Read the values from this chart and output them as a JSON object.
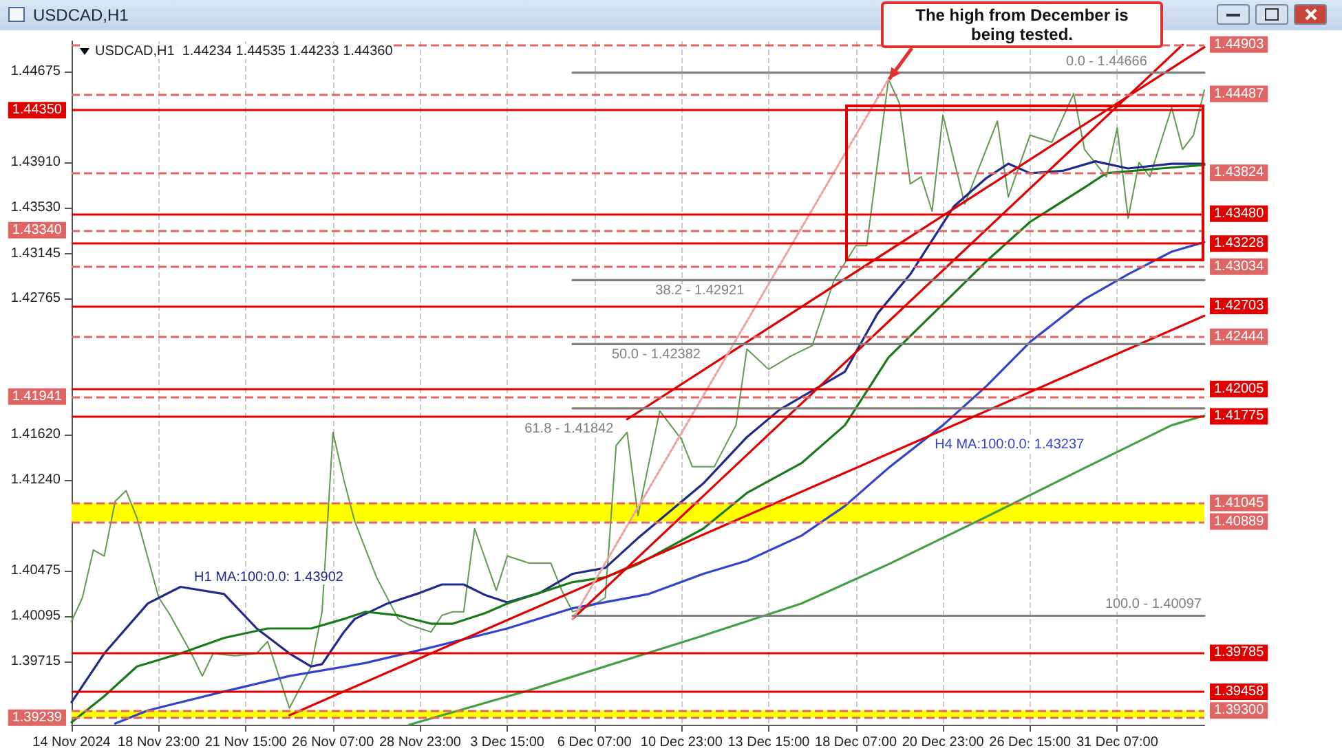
{
  "chart_data": {
    "type": "line",
    "title": "USDCAD,H1",
    "subtitle": "USDCAD,H1  1.44234 1.44535 1.44233 1.44360",
    "annotations": [
      "The high from December is being tested."
    ],
    "categories": [
      "14 Nov 2024",
      null,
      null,
      null,
      null,
      null,
      null,
      null,
      "18 Nov 23:00",
      null,
      null,
      null,
      null,
      null,
      null,
      null,
      "21 Nov 15:00",
      null,
      null,
      null,
      null,
      null,
      null,
      null,
      "26 Nov 07:00",
      null,
      null,
      null,
      null,
      null,
      null,
      null,
      "28 Nov 23:00",
      null,
      null,
      null,
      null,
      null,
      null,
      null,
      "3 Dec 15:00",
      null,
      null,
      null,
      null,
      null,
      null,
      null,
      "6 Dec 07:00",
      null,
      null,
      null,
      null,
      null,
      null,
      null,
      "10 Dec 23:00",
      null,
      null,
      null,
      null,
      null,
      null,
      null,
      "13 Dec 15:00",
      null,
      null,
      null,
      null,
      null,
      null,
      null,
      "18 Dec 07:00",
      null,
      null,
      null,
      null,
      null,
      null,
      null,
      "20 Dec 23:00",
      null,
      null,
      null,
      null,
      null,
      null,
      null,
      "26 Dec 15:00",
      null,
      null,
      null,
      null,
      null,
      null,
      null,
      "31 Dec 07:00",
      null,
      null,
      null,
      null,
      null,
      null,
      null,
      null
    ],
    "ylim": [
      1.3918,
      1.4493
    ],
    "yticks": [
      {
        "value": 1.44675,
        "label": "1.44675"
      },
      {
        "value": 1.4391,
        "label": "1.43910"
      },
      {
        "value": 1.4353,
        "label": "1.43530"
      },
      {
        "value": 1.43145,
        "label": "1.43145"
      },
      {
        "value": 1.42765,
        "label": "1.42765"
      },
      {
        "value": 1.4162,
        "label": "1.41620"
      },
      {
        "value": 1.4124,
        "label": "1.41240"
      },
      {
        "value": 1.40475,
        "label": "1.40475"
      },
      {
        "value": 1.40095,
        "label": "1.40095"
      },
      {
        "value": 1.39715,
        "label": "1.39715"
      }
    ],
    "grid": "x",
    "series": [
      {
        "color": "#5f9a50",
        "values": [
          1.4005,
          1.4025,
          1.4065,
          1.406,
          1.4106,
          1.4115,
          1.4092,
          null,
          1.4025,
          1.4011,
          null,
          1.3978,
          1.3959,
          1.3978,
          null,
          1.3976,
          null,
          1.3978,
          1.3988,
          null,
          1.3932,
          null,
          1.3967,
          1.4013,
          1.4164,
          1.4124,
          1.4089,
          null,
          1.4042,
          null,
          1.4007,
          1.4002,
          null,
          1.3996,
          1.401,
          1.4013,
          1.4013,
          1.4083,
          null,
          1.4031,
          1.406,
          null,
          1.4054,
          null,
          1.4054,
          1.4031,
          1.4013,
          null,
          1.4019,
          1.4025,
          1.4153,
          1.4164,
          1.4094,
          null,
          1.4182,
          null,
          1.4158,
          1.4135,
          null,
          1.4135,
          null,
          1.417,
          1.4234,
          null,
          1.4217,
          null,
          1.4228,
          null,
          1.4237,
          null,
          1.4292,
          null,
          1.4321,
          1.4321,
          null,
          1.4461,
          1.4441,
          1.4373,
          1.4379,
          1.435,
          1.4431,
          null,
          1.4356,
          null,
          null,
          1.4426,
          1.4362,
          null,
          1.4414,
          null,
          1.4408,
          null,
          1.4449,
          1.4402,
          null,
          1.4379,
          1.442,
          1.4344,
          1.4391,
          1.4379,
          null,
          1.4437,
          1.4402,
          1.4414,
          1.4452
        ]
      },
      {
        "name": "H1 MA:100:0.0: 1.43902",
        "color": "#1f2a8a",
        "values": [
          1.3937,
          null,
          null,
          1.3978,
          null,
          null,
          null,
          1.402,
          null,
          null,
          1.4034,
          null,
          null,
          null,
          1.4028,
          null,
          null,
          1.3999,
          null,
          null,
          1.3978,
          null,
          1.3967,
          1.3969,
          null,
          1.3996,
          1.4007,
          null,
          null,
          1.402,
          null,
          null,
          1.4029,
          null,
          1.4036,
          null,
          1.4036,
          null,
          1.4027,
          null,
          1.4021,
          null,
          null,
          1.4029,
          null,
          null,
          1.4045,
          null,
          null,
          1.405,
          null,
          null,
          1.4075,
          null,
          null,
          null,
          null,
          null,
          1.4121,
          null,
          null,
          null,
          1.416,
          null,
          null,
          1.4183,
          null,
          null,
          null,
          null,
          null,
          1.4215,
          null,
          null,
          1.4264,
          null,
          null,
          1.4297,
          null,
          null,
          null,
          1.4354,
          null,
          null,
          1.4378,
          null,
          1.439,
          null,
          1.4382,
          null,
          null,
          1.4384,
          null,
          null,
          1.4392,
          null,
          null,
          1.4386,
          null,
          null,
          null,
          1.439,
          null,
          null,
          1.439
        ]
      },
      {
        "color": "#1a7a1a",
        "values": [
          1.392,
          null,
          null,
          1.3942,
          null,
          null,
          1.3967,
          null,
          null,
          null,
          1.3978,
          null,
          null,
          null,
          1.3991,
          null,
          null,
          null,
          1.3999,
          null,
          null,
          null,
          1.3999,
          null,
          null,
          1.4007,
          null,
          1.4013,
          null,
          null,
          1.401,
          null,
          null,
          1.4003,
          null,
          1.4003,
          null,
          null,
          1.4012,
          null,
          1.402,
          null,
          null,
          1.4029,
          null,
          null,
          1.4038,
          null,
          null,
          1.4042,
          null,
          null,
          1.4053,
          null,
          null,
          null,
          null,
          null,
          1.4083,
          null,
          null,
          null,
          1.4113,
          null,
          null,
          null,
          null,
          1.4138,
          null,
          null,
          null,
          1.417,
          null,
          null,
          null,
          1.4227,
          null,
          null,
          null,
          null,
          1.4272,
          null,
          null,
          null,
          1.4308,
          null,
          null,
          null,
          1.4341,
          null,
          null,
          null,
          null,
          1.437,
          null,
          1.4382,
          null,
          null,
          null,
          null,
          1.4386,
          null,
          null,
          null,
          1.4389
        ]
      },
      {
        "name": "H4 MA:100:0.0: 1.43237",
        "color": "#3344cc",
        "values": [
          null,
          null,
          null,
          null,
          1.3919,
          null,
          null,
          1.393,
          null,
          null,
          null,
          null,
          null,
          null,
          1.3946,
          null,
          null,
          null,
          null,
          null,
          1.3959,
          null,
          null,
          null,
          null,
          null,
          null,
          1.397,
          null,
          null,
          null,
          null,
          null,
          1.3983,
          null,
          null,
          null,
          null,
          null,
          null,
          1.3999,
          null,
          null,
          null,
          null,
          null,
          1.4016,
          null,
          null,
          null,
          null,
          null,
          null,
          1.4028,
          null,
          null,
          null,
          null,
          1.4045,
          null,
          null,
          null,
          1.4056,
          null,
          null,
          null,
          null,
          1.4077,
          null,
          null,
          null,
          1.4102,
          null,
          null,
          null,
          1.4134,
          null,
          null,
          null,
          null,
          1.417,
          null,
          null,
          null,
          1.4203,
          null,
          null,
          null,
          1.424,
          null,
          null,
          null,
          null,
          1.4276,
          null,
          null,
          null,
          1.4297,
          null,
          null,
          null,
          1.4316,
          null,
          null,
          1.4324
        ]
      },
      {
        "color": "#44a044",
        "values": [
          null,
          null,
          null,
          null,
          null,
          null,
          null,
          null,
          null,
          null,
          null,
          null,
          null,
          null,
          null,
          null,
          null,
          null,
          null,
          null,
          null,
          null,
          null,
          null,
          null,
          null,
          null,
          null,
          null,
          null,
          null,
          1.3918,
          null,
          null,
          null,
          null,
          null,
          null,
          null,
          null,
          null,
          null,
          1.3947,
          null,
          null,
          null,
          null,
          null,
          null,
          null,
          null,
          null,
          null,
          null,
          null,
          null,
          null,
          null,
          1.3993,
          null,
          null,
          null,
          null,
          null,
          null,
          null,
          null,
          1.402,
          null,
          null,
          null,
          null,
          null,
          null,
          null,
          1.4053,
          null,
          null,
          null,
          null,
          null,
          null,
          null,
          null,
          1.4093,
          null,
          null,
          null,
          null,
          null,
          null,
          null,
          null,
          1.4134,
          null,
          null,
          null,
          null,
          null,
          null,
          null,
          1.417,
          null,
          null,
          1.4178
        ]
      },
      {
        "color": "#e00000",
        "values": [
          null,
          null,
          null,
          null,
          null,
          null,
          null,
          null,
          null,
          null,
          null,
          null,
          null,
          null,
          null,
          null,
          null,
          null,
          null,
          null,
          1.3926,
          null,
          null,
          null,
          null,
          null,
          null,
          null,
          null,
          null,
          null,
          null,
          null,
          null,
          null,
          null,
          null,
          null,
          null,
          null,
          null,
          null,
          null,
          null,
          null,
          null,
          null,
          null,
          null,
          null,
          null,
          null,
          null,
          null,
          null,
          null,
          null,
          null,
          null,
          null,
          null,
          null,
          null,
          null,
          null,
          null,
          null,
          null,
          null,
          null,
          null,
          null,
          null,
          null,
          null,
          null,
          null,
          null,
          null,
          null,
          null,
          null,
          null,
          null,
          null,
          null,
          null,
          null,
          null,
          null,
          null,
          null,
          null,
          null,
          null,
          null,
          null,
          null,
          null,
          null,
          null,
          null,
          null,
          null,
          1.4262
        ]
      },
      {
        "color": "#e00000",
        "values": [
          null,
          null,
          null,
          null,
          null,
          null,
          null,
          null,
          null,
          null,
          null,
          null,
          null,
          null,
          null,
          null,
          null,
          null,
          null,
          null,
          null,
          null,
          null,
          null,
          null,
          null,
          null,
          null,
          null,
          null,
          null,
          null,
          null,
          null,
          null,
          null,
          null,
          null,
          null,
          null,
          null,
          null,
          null,
          null,
          null,
          null,
          null,
          null,
          null,
          null,
          null,
          1.4175,
          null,
          null,
          null,
          null,
          null,
          null,
          null,
          null,
          null,
          null,
          null,
          null,
          null,
          null,
          null,
          null,
          null,
          null,
          null,
          null,
          null,
          null,
          null,
          null,
          null,
          null,
          null,
          null,
          null,
          null,
          null,
          null,
          null,
          null,
          null,
          null,
          null,
          null,
          null,
          null,
          null,
          null,
          null,
          null,
          null,
          null,
          null,
          null,
          null,
          null,
          null,
          null,
          1.4488
        ]
      },
      {
        "color": "#e00000",
        "values": [
          null,
          null,
          null,
          null,
          null,
          null,
          null,
          null,
          null,
          null,
          null,
          null,
          null,
          null,
          null,
          null,
          null,
          null,
          null,
          null,
          null,
          null,
          null,
          null,
          null,
          null,
          null,
          null,
          null,
          null,
          null,
          null,
          null,
          null,
          null,
          null,
          null,
          null,
          null,
          null,
          null,
          null,
          null,
          null,
          null,
          null,
          1.4007,
          null,
          null,
          null,
          null,
          null,
          null,
          null,
          null,
          null,
          null,
          null,
          null,
          null,
          null,
          null,
          null,
          null,
          null,
          null,
          null,
          null,
          null,
          null,
          null,
          null,
          null,
          null,
          null,
          null,
          null,
          null,
          null,
          null,
          null,
          null,
          null,
          null,
          null,
          null,
          null,
          null,
          null,
          null,
          null,
          null,
          null,
          null,
          null,
          null,
          null,
          null,
          null,
          null,
          null,
          null,
          1.449,
          null,
          null
        ]
      },
      {
        "color": "#f0a0a0",
        "line_style": "dotted",
        "values": [
          null,
          null,
          null,
          null,
          null,
          null,
          null,
          null,
          null,
          null,
          null,
          null,
          null,
          null,
          null,
          null,
          null,
          null,
          null,
          null,
          null,
          null,
          null,
          null,
          null,
          null,
          null,
          null,
          null,
          null,
          null,
          null,
          null,
          null,
          null,
          null,
          null,
          null,
          null,
          null,
          null,
          null,
          null,
          null,
          null,
          null,
          1.4007,
          null,
          null,
          null,
          null,
          null,
          null,
          null,
          null,
          null,
          null,
          null,
          null,
          null,
          null,
          null,
          null,
          null,
          null,
          null,
          null,
          null,
          null,
          null,
          null,
          null,
          null,
          null,
          null,
          1.4461,
          null,
          null,
          null,
          null,
          null,
          null,
          null,
          null,
          null,
          null,
          null,
          null,
          null,
          null,
          null,
          null,
          null,
          null,
          null,
          null,
          null,
          null,
          null,
          null,
          null,
          null,
          null,
          null,
          null
        ]
      },
      {
        "name": "0.0 - 1.44666",
        "color": "#808080",
        "values": [
          null,
          null,
          null,
          null,
          null,
          null,
          null,
          null,
          null,
          null,
          null,
          null,
          null,
          null,
          null,
          null,
          null,
          null,
          null,
          null,
          null,
          null,
          null,
          null,
          null,
          null,
          null,
          null,
          null,
          null,
          null,
          null,
          null,
          null,
          null,
          null,
          null,
          null,
          null,
          null,
          null,
          null,
          null,
          null,
          null,
          null,
          1.44666,
          null,
          null,
          null,
          null,
          null,
          null,
          null,
          null,
          null,
          null,
          null,
          null,
          null,
          null,
          null,
          null,
          null,
          null,
          null,
          null,
          null,
          null,
          null,
          null,
          null,
          null,
          null,
          null,
          null,
          null,
          null,
          null,
          null,
          null,
          null,
          null,
          null,
          null,
          null,
          null,
          null,
          null,
          null,
          null,
          null,
          null,
          null,
          null,
          null,
          null,
          null,
          null,
          null,
          null,
          null,
          null,
          null,
          1.44666
        ]
      },
      {
        "name": "38.2 - 1.42921",
        "color": "#808080",
        "values": [
          null,
          null,
          null,
          null,
          null,
          null,
          null,
          null,
          null,
          null,
          null,
          null,
          null,
          null,
          null,
          null,
          null,
          null,
          null,
          null,
          null,
          null,
          null,
          null,
          null,
          null,
          null,
          null,
          null,
          null,
          null,
          null,
          null,
          null,
          null,
          null,
          null,
          null,
          null,
          null,
          null,
          null,
          null,
          null,
          null,
          null,
          1.42921,
          null,
          null,
          null,
          null,
          null,
          null,
          null,
          null,
          null,
          null,
          null,
          null,
          null,
          null,
          null,
          null,
          null,
          null,
          null,
          null,
          null,
          null,
          null,
          null,
          null,
          null,
          null,
          null,
          null,
          null,
          null,
          null,
          null,
          null,
          null,
          null,
          null,
          null,
          null,
          null,
          null,
          null,
          null,
          null,
          null,
          null,
          null,
          null,
          null,
          null,
          null,
          null,
          null,
          null,
          null,
          null,
          null,
          1.42921
        ]
      },
      {
        "name": "50.0 - 1.42382",
        "color": "#808080",
        "values": [
          null,
          null,
          null,
          null,
          null,
          null,
          null,
          null,
          null,
          null,
          null,
          null,
          null,
          null,
          null,
          null,
          null,
          null,
          null,
          null,
          null,
          null,
          null,
          null,
          null,
          null,
          null,
          null,
          null,
          null,
          null,
          null,
          null,
          null,
          null,
          null,
          null,
          null,
          null,
          null,
          null,
          null,
          null,
          null,
          null,
          null,
          1.42382,
          null,
          null,
          null,
          null,
          null,
          null,
          null,
          null,
          null,
          null,
          null,
          null,
          null,
          null,
          null,
          null,
          null,
          null,
          null,
          null,
          null,
          null,
          null,
          null,
          null,
          null,
          null,
          null,
          null,
          null,
          null,
          null,
          null,
          null,
          null,
          null,
          null,
          null,
          null,
          null,
          null,
          null,
          null,
          null,
          null,
          null,
          null,
          null,
          null,
          null,
          null,
          null,
          null,
          null,
          null,
          null,
          null,
          1.42382
        ]
      },
      {
        "name": "61.8 - 1.41842",
        "color": "#808080",
        "values": [
          null,
          null,
          null,
          null,
          null,
          null,
          null,
          null,
          null,
          null,
          null,
          null,
          null,
          null,
          null,
          null,
          null,
          null,
          null,
          null,
          null,
          null,
          null,
          null,
          null,
          null,
          null,
          null,
          null,
          null,
          null,
          null,
          null,
          null,
          null,
          null,
          null,
          null,
          null,
          null,
          null,
          null,
          null,
          null,
          null,
          null,
          1.41842,
          null,
          null,
          null,
          null,
          null,
          null,
          null,
          null,
          null,
          null,
          null,
          null,
          null,
          null,
          null,
          null,
          null,
          null,
          null,
          null,
          null,
          null,
          null,
          null,
          null,
          null,
          null,
          null,
          null,
          null,
          null,
          null,
          null,
          null,
          null,
          null,
          null,
          null,
          null,
          null,
          null,
          null,
          null,
          null,
          null,
          null,
          null,
          null,
          null,
          null,
          null,
          null,
          null,
          null,
          null,
          null,
          null,
          1.41842
        ]
      },
      {
        "name": "100.0 - 1.40097",
        "color": "#808080",
        "values": [
          null,
          null,
          null,
          null,
          null,
          null,
          null,
          null,
          null,
          null,
          null,
          null,
          null,
          null,
          null,
          null,
          null,
          null,
          null,
          null,
          null,
          null,
          null,
          null,
          null,
          null,
          null,
          null,
          null,
          null,
          null,
          null,
          null,
          null,
          null,
          null,
          null,
          null,
          null,
          null,
          null,
          null,
          null,
          null,
          null,
          null,
          1.40097,
          null,
          null,
          null,
          null,
          null,
          null,
          null,
          null,
          null,
          null,
          null,
          null,
          null,
          null,
          null,
          null,
          null,
          null,
          null,
          null,
          null,
          null,
          null,
          null,
          null,
          null,
          null,
          null,
          null,
          null,
          null,
          null,
          null,
          null,
          null,
          null,
          null,
          null,
          null,
          null,
          null,
          null,
          null,
          null,
          null,
          null,
          null,
          null,
          null,
          null,
          null,
          null,
          null,
          null,
          null,
          null,
          null,
          1.40097
        ]
      }
    ],
    "ref_lines": [
      {
        "axis": "y",
        "value": 1.44903,
        "label": "1.44903",
        "color": "#e06666",
        "line_style": "dashed"
      },
      {
        "axis": "y",
        "value": 1.44487,
        "label": "1.44487",
        "color": "#e06666",
        "line_style": "dashed"
      },
      {
        "axis": "y",
        "value": 1.4435,
        "label": "1.44350",
        "color": "#e00000",
        "line_style": "solid"
      },
      {
        "axis": "y",
        "value": 1.43824,
        "label": "1.43824",
        "color": "#e06666",
        "line_style": "dashed"
      },
      {
        "axis": "y",
        "value": 1.4348,
        "label": "1.43480",
        "color": "#e00000",
        "line_style": "solid"
      },
      {
        "axis": "y",
        "value": 1.4334,
        "label": "1.43340",
        "color": "#e06666",
        "line_style": "dashed"
      },
      {
        "axis": "y",
        "value": 1.43228,
        "label": "1.43228",
        "color": "#e00000",
        "line_style": "solid"
      },
      {
        "axis": "y",
        "value": 1.43034,
        "label": "1.43034",
        "color": "#e06666",
        "line_style": "dashed"
      },
      {
        "axis": "y",
        "value": 1.42703,
        "label": "1.42703",
        "color": "#e00000",
        "line_style": "solid"
      },
      {
        "axis": "y",
        "value": 1.42444,
        "label": "1.42444",
        "color": "#e06666",
        "line_style": "dashed"
      },
      {
        "axis": "y",
        "value": 1.42005,
        "label": "1.42005",
        "color": "#e00000",
        "line_style": "solid"
      },
      {
        "axis": "y",
        "value": 1.41941,
        "label": "1.41941",
        "color": "#e06666",
        "line_style": "dashed"
      },
      {
        "axis": "y",
        "value": 1.41775,
        "label": "1.41775",
        "color": "#e00000",
        "line_style": "solid"
      },
      {
        "axis": "y",
        "value": 1.41045,
        "label": "1.41045",
        "color": "#e06666",
        "line_style": "dashed"
      },
      {
        "axis": "y",
        "value": 1.40889,
        "label": "1.40889",
        "color": "#e06666",
        "line_style": "dashed"
      },
      {
        "axis": "y",
        "value": 1.39785,
        "label": "1.39785",
        "color": "#e00000",
        "line_style": "solid"
      },
      {
        "axis": "y",
        "value": 1.39458,
        "label": "1.39458",
        "color": "#e00000",
        "line_style": "solid"
      },
      {
        "axis": "y",
        "value": 1.393,
        "label": "1.39300",
        "color": "#e06666",
        "line_style": "dashed"
      },
      {
        "axis": "y",
        "value": 1.39239,
        "label": "1.39239",
        "color": "#e06666",
        "line_style": "dashed"
      }
    ],
    "bands": [
      {
        "axis": "y",
        "from": 1.40889,
        "to": 1.41045,
        "color": "#ffff00"
      },
      {
        "axis": "y",
        "from": 1.39239,
        "to": 1.393,
        "color": "#ffff00"
      }
    ]
  }
}
